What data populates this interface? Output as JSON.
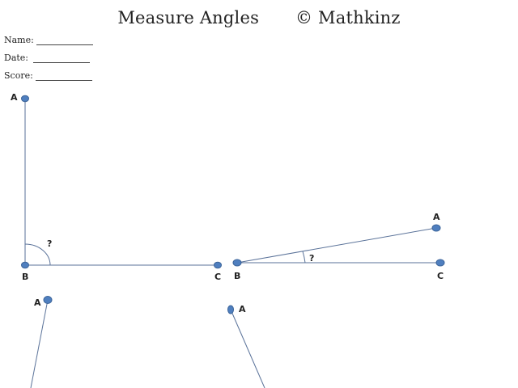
{
  "header": {
    "title": "Measure Angles",
    "copyright": "© Mathkinz"
  },
  "fields": [
    {
      "label": "Name:"
    },
    {
      "label": "Date:"
    },
    {
      "label": "Score:"
    }
  ],
  "colors": {
    "line": "#5a7299",
    "point_fill": "#4f7fbf",
    "point_stroke": "#3d659a"
  },
  "angles": [
    {
      "vertex": "B",
      "ray1": "A",
      "ray2": "C",
      "unknown": "?"
    },
    {
      "vertex": "B",
      "ray1": "A",
      "ray2": "C",
      "unknown": "?"
    },
    {
      "ray1": "A"
    },
    {
      "ray1": "A"
    }
  ]
}
